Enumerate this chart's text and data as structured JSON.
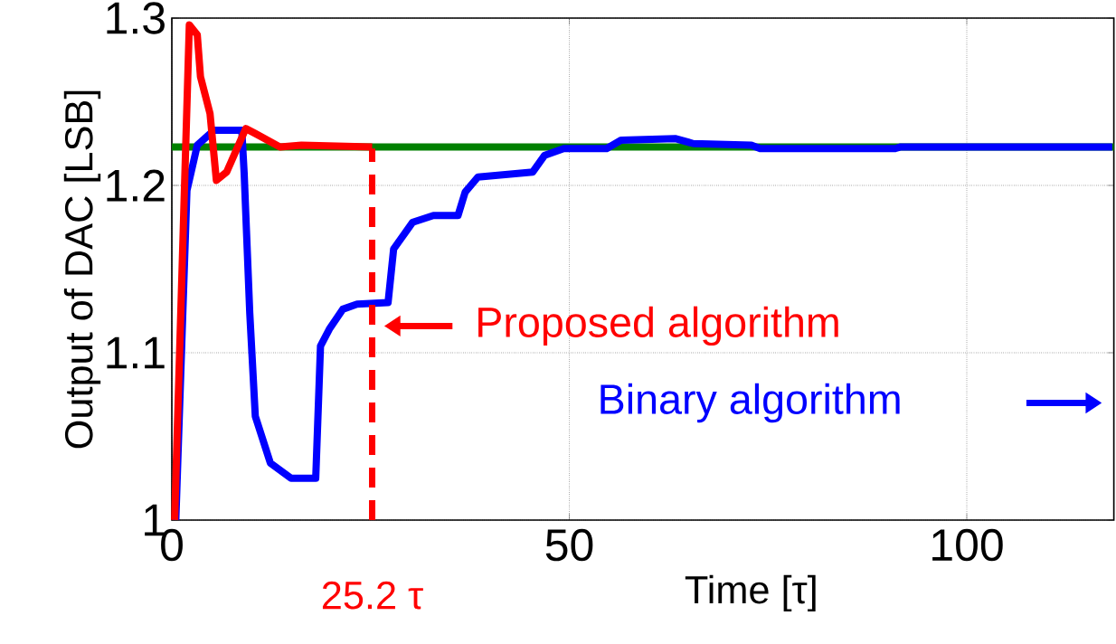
{
  "chart_data": {
    "type": "line",
    "xlabel": "Time [τ]",
    "ylabel": "Output of DAC [LSB]",
    "xlim": [
      0,
      118.5
    ],
    "ylim": [
      1,
      1.3
    ],
    "xticks": [
      0,
      50,
      100
    ],
    "yticks": [
      1,
      1.1,
      1.2,
      1.3
    ],
    "grid": true,
    "series": [
      {
        "name": "Proposed algorithm",
        "color": "#ff0000",
        "x": [
          0.35,
          2.2,
          3.2,
          3.6,
          4.8,
          5.6,
          6.9,
          9.3,
          10.5,
          13.6,
          16.3,
          25.2
        ],
        "values": [
          1.0,
          1.296,
          1.29,
          1.265,
          1.243,
          1.203,
          1.208,
          1.234,
          1.231,
          1.223,
          1.224,
          1.223
        ]
      },
      {
        "name": "Binary algorithm",
        "color": "#0000ff",
        "x": [
          0.5,
          1.9,
          3.2,
          5.3,
          8.8,
          9.1,
          9.8,
          10.5,
          12.4,
          15.0,
          18.1,
          18.7,
          19.8,
          21.5,
          23.3,
          27.2,
          27.9,
          30.3,
          32.9,
          36.0,
          36.9,
          38.5,
          45.4,
          46.9,
          49.3,
          54.7,
          56.5,
          63.3,
          65.6,
          72.9,
          74.0,
          91.0,
          91.7,
          118.3
        ],
        "values": [
          1.0,
          1.197,
          1.224,
          1.233,
          1.233,
          1.207,
          1.124,
          1.062,
          1.034,
          1.025,
          1.025,
          1.104,
          1.114,
          1.126,
          1.129,
          1.13,
          1.162,
          1.178,
          1.182,
          1.182,
          1.196,
          1.205,
          1.208,
          1.218,
          1.222,
          1.222,
          1.227,
          1.228,
          1.225,
          1.224,
          1.222,
          1.222,
          1.223,
          1.223
        ]
      },
      {
        "color": "#008000",
        "x": [
          0,
          118.5
        ],
        "values": [
          1.223,
          1.223
        ]
      }
    ],
    "ref_lines": [
      {
        "axis": "x",
        "value": 25.2,
        "label": "25.2 τ",
        "color": "#ff0000",
        "line_style": "dashed"
      }
    ]
  }
}
